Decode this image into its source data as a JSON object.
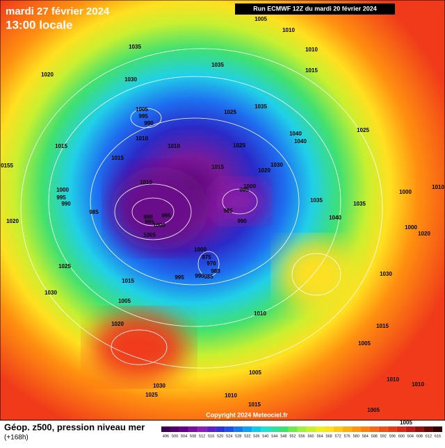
{
  "header": {
    "title": "mardi 27 février 2024",
    "subtitle": "13:00 locale",
    "run": "Run ECMWF 12Z du mardi 20 février 2024"
  },
  "map": {
    "pressure_labels": [
      "1005",
      "1010",
      "1035",
      "1010",
      "1035",
      "1020",
      "1030",
      "1015",
      "1005",
      "995",
      "990",
      "1025",
      "1035",
      "1025",
      "1010",
      "1040",
      "1040",
      "1015",
      "1010",
      "1025",
      "1030",
      "1015",
      "1015",
      "1020",
      "0155",
      "1010",
      "995",
      "1000",
      "1000",
      "995",
      "990",
      "985",
      "1035",
      "1035",
      "1000",
      "1010",
      "990",
      "995",
      "995",
      "985",
      "1000",
      "990",
      "1040",
      "1020",
      "1005",
      "1000",
      "1020",
      "1000",
      "975",
      "970",
      "980",
      "985",
      "990",
      "995",
      "1025",
      "1015",
      "1030",
      "1030",
      "1005",
      "1010",
      "1020",
      "1015",
      "1005",
      "1005",
      "1030",
      "1025",
      "1010",
      "1010",
      "1010",
      "1005",
      "1005",
      "1015"
    ],
    "copyright": "Copyright 2024 Meteociel.fr"
  },
  "footer": {
    "caption": "Géop. z500, pression niveau mer",
    "lead": "(+168h)",
    "scale_labels": [
      "496",
      "500",
      "504",
      "508",
      "512",
      "516",
      "520",
      "524",
      "528",
      "532",
      "536",
      "540",
      "544",
      "548",
      "552",
      "556",
      "560",
      "564",
      "568",
      "572",
      "576",
      "580",
      "584",
      "588",
      "592",
      "596",
      "600",
      "604",
      "608",
      "612",
      "616"
    ]
  }
}
